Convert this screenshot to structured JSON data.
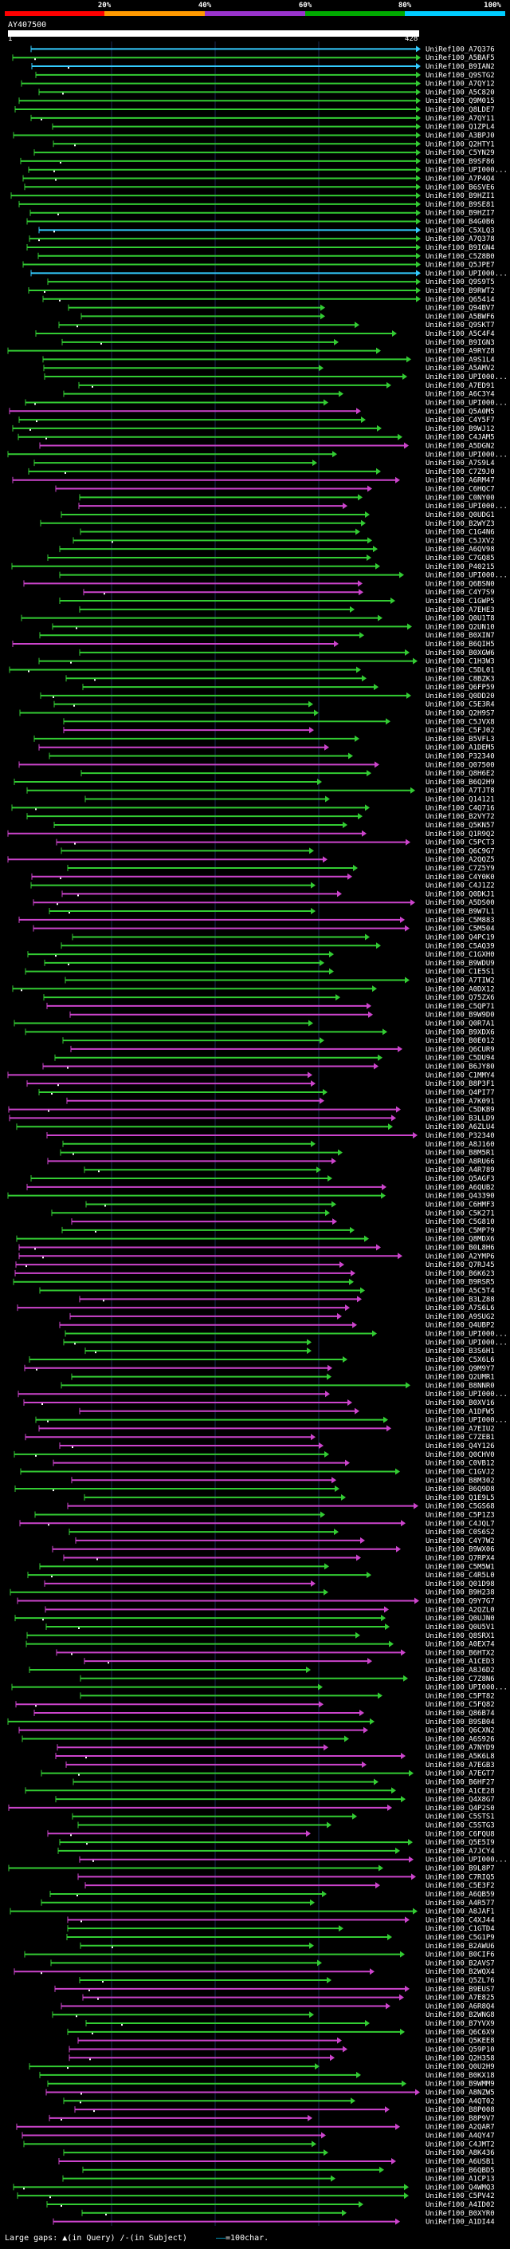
{
  "legend": {
    "labels": [
      "20%",
      "40%",
      "60%",
      "80%",
      "100%"
    ],
    "colors": [
      "#ff0000",
      "#ff9900",
      "#9933cc",
      "#00aa00",
      "#00ccff"
    ]
  },
  "query": {
    "id": "AY407500",
    "start": "1",
    "end": "428"
  },
  "hits": [
    "UniRef100_A7Q376",
    "UniRef100_A5BAF5",
    "UniRef100_B9IAN2",
    "UniRef100_Q9STG2",
    "UniRef100_A7QY12",
    "UniRef100_A5C820",
    "UniRef100_Q9M015",
    "UniRef100_Q8LDE7",
    "UniRef100_A7QY11",
    "UniRef100_Q1ZPL4",
    "UniRef100_A3BPJ0",
    "UniRef100_Q2HTY1",
    "UniRef100_C5YN29",
    "UniRef100_B9SF86",
    "UniRef100_UPI000...",
    "UniRef100_A7P4Q4",
    "UniRef100_B6SVE6",
    "UniRef100_B9HZI1",
    "UniRef100_B9SE81",
    "UniRef100_B9HZI7",
    "UniRef100_B4G0B6",
    "UniRef100_C5XLQ3",
    "UniRef100_A7Q378",
    "UniRef100_B9IGN4",
    "UniRef100_C5Z8B0",
    "UniRef100_Q5JPE7",
    "UniRef100_UPI000...",
    "UniRef100_Q9S9T5",
    "UniRef100_B9RWT2",
    "UniRef100_Q65414",
    "UniRef100_Q94BV7",
    "UniRef100_A5BWF6",
    "UniRef100_Q9SKT7",
    "UniRef100_A5C4F4",
    "UniRef100_B9IGN3",
    "UniRef100_A9RYZ8",
    "UniRef100_A9S1L4",
    "UniRef100_A5AMV2",
    "UniRef100_UPI000...",
    "UniRef100_A7ED91",
    "UniRef100_A6C3Y4",
    "UniRef100_UPI000...",
    "UniRef100_Q5A0M5",
    "UniRef100_C4Y5F7",
    "UniRef100_B9WJ12",
    "UniRef100_C4JAM5",
    "UniRef100_A5DGN2",
    "UniRef100_UPI000...",
    "UniRef100_A7S9L4",
    "UniRef100_C7Z9J0",
    "UniRef100_A6RM47",
    "UniRef100_C6HQC7",
    "UniRef100_C0NY00",
    "UniRef100_UPI000...",
    "UniRef100_Q0UDG1",
    "UniRef100_B2WYZ3",
    "UniRef100_C1G4N6",
    "UniRef100_C5JXV2",
    "UniRef100_A6QV98",
    "UniRef100_C7GQ85",
    "UniRef100_P40215",
    "UniRef100_UPI000...",
    "UniRef100_Q6BSN0",
    "UniRef100_C4Y7S9",
    "UniRef100_C1GWP5",
    "UniRef100_A7EHE3",
    "UniRef100_Q0U1T8",
    "UniRef100_Q2UN10",
    "UniRef100_B0XIN7",
    "UniRef100_B6QIH5",
    "UniRef100_B0XGW6",
    "UniRef100_C1H3W3",
    "UniRef100_C5DL01",
    "UniRef100_C8BZK3",
    "UniRef100_Q6FP59",
    "UniRef100_Q0DD20",
    "UniRef100_C5E3R4",
    "UniRef100_Q2H9S7",
    "UniRef100_C5JVX8",
    "UniRef100_C5FJ02",
    "UniRef100_B5VFL3",
    "UniRef100_A1DEM5",
    "UniRef100_P32340",
    "UniRef100_Q07500",
    "UniRef100_Q8H6E2",
    "UniRef100_B6Q2H9",
    "UniRef100_A7TJT8",
    "UniRef100_Q14121",
    "UniRef100_C4Q716",
    "UniRef100_B2VY72",
    "UniRef100_Q5KN57",
    "UniRef100_Q1R9Q2",
    "UniRef100_C5PCT3",
    "UniRef100_Q6C9G7",
    "UniRef100_A2QQZ5",
    "UniRef100_C7Z5Y9",
    "UniRef100_C4Y0K0",
    "UniRef100_C4J1Z2",
    "UniRef100_Q0DKJ1",
    "UniRef100_A5DS00",
    "UniRef100_B9W7L1",
    "UniRef100_C5M883",
    "UniRef100_C5M504",
    "UniRef100_Q4PC19",
    "UniRef100_C5AQ39",
    "UniRef100_C1GXH0",
    "UniRef100_B9WDU9",
    "UniRef100_C1E5S1",
    "UniRef100_A7TIW2",
    "UniRef100_A0DX12",
    "UniRef100_Q75ZX6",
    "UniRef100_C5QP71",
    "UniRef100_B9W9D0",
    "UniRef100_Q0R7A1",
    "UniRef100_B9XDX6",
    "UniRef100_B0E012",
    "UniRef100_Q6CUR9",
    "UniRef100_C5DU94",
    "UniRef100_B6JY80",
    "UniRef100_C1MMY4",
    "UniRef100_B8P3F1",
    "UniRef100_Q4PI77",
    "UniRef100_A7K091",
    "UniRef100_C5DKB9",
    "UniRef100_B3LLD9",
    "UniRef100_A6ZLU4",
    "UniRef100_P32340",
    "UniRef100_A8J160",
    "UniRef100_B8M5R1",
    "UniRef100_A8RU66",
    "UniRef100_A4R789",
    "UniRef100_Q5AGF3",
    "UniRef100_A6QUB2",
    "UniRef100_Q43390",
    "UniRef100_C6HMF3",
    "UniRef100_C5K271",
    "UniRef100_C5G810",
    "UniRef100_C5MP79",
    "UniRef100_Q8MDX6",
    "UniRef100_B0L8H6",
    "UniRef100_A2YMP6",
    "UniRef100_Q7RJ45",
    "UniRef100_B6K623",
    "UniRef100_B9RSR5",
    "UniRef100_A5C5T4",
    "UniRef100_B3LZ88",
    "UniRef100_A7S6L6",
    "UniRef100_A9SUG2",
    "UniRef100_Q4UBP2",
    "UniRef100_UPI000...",
    "UniRef100_UPI000...",
    "UniRef100_B3S6H1",
    "UniRef100_C5X6L6",
    "UniRef100_Q9M9Y7",
    "UniRef100_Q2UMR1",
    "UniRef100_B8NNR0",
    "UniRef100_UPI000...",
    "UniRef100_B0XV16",
    "UniRef100_A1DFW5",
    "UniRef100_UPI000...",
    "UniRef100_A7EIU2",
    "UniRef100_C7ZEB1",
    "UniRef100_Q4Y126",
    "UniRef100_Q0CHV0",
    "UniRef100_C0VB12",
    "UniRef100_C1GVJ2",
    "UniRef100_B8M302",
    "UniRef100_B6Q9D8",
    "UniRef100_Q1E9L5",
    "UniRef100_C5GS68",
    "UniRef100_C5P1Z3",
    "UniRef100_C4JQL7",
    "UniRef100_C0S6S2",
    "UniRef100_C4Y7W2",
    "UniRef100_B9WX06",
    "UniRef100_Q7RPX4",
    "UniRef100_C5M5W1",
    "UniRef100_C4R5L0",
    "UniRef100_Q01D98",
    "UniRef100_B9H238",
    "UniRef100_Q9Y7G7",
    "UniRef100_A2QZL0",
    "UniRef100_Q0UJN0",
    "UniRef100_Q0U5V1",
    "UniRef100_Q8SRX1",
    "UniRef100_A0EX74",
    "UniRef100_B6HTX2",
    "UniRef100_A1CED3",
    "UniRef100_A8J6D2",
    "UniRef100_C7Z8N6",
    "UniRef100_UPI000...",
    "UniRef100_C5PT82",
    "UniRef100_C5FQ82",
    "UniRef100_Q86B74",
    "UniRef100_B9SB04",
    "UniRef100_Q6CXN2",
    "UniRef100_A6S926",
    "UniRef100_A7NYD9",
    "UniRef100_A5K6L8",
    "UniRef100_A7EGB3",
    "UniRef100_A7EGT7",
    "UniRef100_B6HF27",
    "UniRef100_A1CE28",
    "UniRef100_Q4X8G7",
    "UniRef100_Q4P2S0",
    "UniRef100_C5STS1",
    "UniRef100_C5STG3",
    "UniRef100_C6FQU8",
    "UniRef100_Q5E5I9",
    "UniRef100_A7JCY4",
    "UniRef100_UPI000...",
    "UniRef100_B9L8P7",
    "UniRef100_C7RIQ5",
    "UniRef100_C5E3F2",
    "UniRef100_A6QB59",
    "UniRef100_A4R577",
    "UniRef100_A8JAF1",
    "UniRef100_C4XJ44",
    "UniRef100_C1GTD4",
    "UniRef100_C5G1P9",
    "UniRef100_B2AWU6",
    "UniRef100_B0CIF6",
    "UniRef100_B2AVS7",
    "UniRef100_B2WQX4",
    "UniRef100_Q5ZL76",
    "UniRef100_B9EUS7",
    "UniRef100_A7E825",
    "UniRef100_A6R8Q4",
    "UniRef100_B2WNG8",
    "UniRef100_B7YVX9",
    "UniRef100_Q6C6X9",
    "UniRef100_Q5KEE8",
    "UniRef100_Q59P10",
    "UniRef100_Q2H358",
    "UniRef100_Q0U2H9",
    "UniRef100_B0KX18",
    "UniRef100_B9WMM9",
    "UniRef100_A8NZW5",
    "UniRef100_A4QT02",
    "UniRef100_B8P008",
    "UniRef100_B8P9V7",
    "UniRef100_A2QAR7",
    "UniRef100_A4QY47",
    "UniRef100_C4JMT2",
    "UniRef100_A8K436",
    "UniRef100_A6USB1",
    "UniRef100_B6QBD5",
    "UniRef100_A1CP13",
    "UniRef100_Q4WMQ3",
    "UniRef100_C5PV42",
    "UniRef100_A4ID02",
    "UniRef100_B0XYR0",
    "UniRef100_A1DI44"
  ],
  "footer": {
    "gaps_label": "Large gaps:",
    "in_query": "(in Query)",
    "in_subject": "(in Subject)",
    "scale_label": "=100char."
  }
}
